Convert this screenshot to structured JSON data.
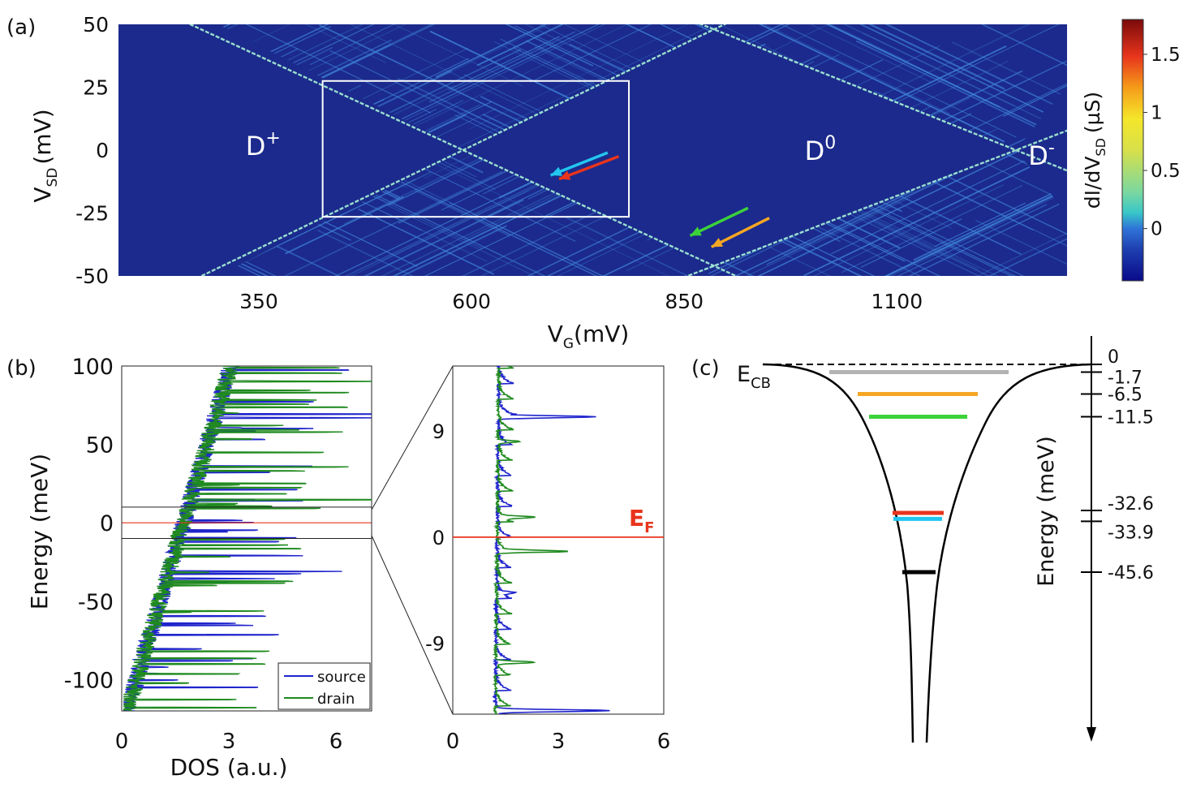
{
  "colors": {
    "map_bg": "#1b2a8c",
    "map_line": "#3f83d8",
    "ridge": "#a9f2d6",
    "box": "#ffffff",
    "source": "#1f24cc",
    "drain": "#1f8a1f",
    "fermi": "#e8341c",
    "cyan": "#22c6ef",
    "red": "#e8341c",
    "green": "#3cd23a",
    "orange": "#f5a623",
    "gray": "#b3b3b3",
    "black": "#000000"
  },
  "chart_data": [
    {
      "id": "a",
      "panel_label": "(a)",
      "type": "heatmap",
      "title": "",
      "xlabel": "V",
      "xlabel_sub": "G",
      "xlabel_unit": "(mV)",
      "ylabel": "V",
      "ylabel_sub": "SD",
      "ylabel_unit": "(mV)",
      "xlim": [
        185,
        1300
      ],
      "ylim": [
        -50,
        50
      ],
      "xticks": [
        350,
        600,
        850,
        1100
      ],
      "yticks": [
        -50,
        -25,
        0,
        25,
        50
      ],
      "colorbar": {
        "label": "dI/dV",
        "label_sub": "SD",
        "label_unit": "(µS)",
        "range": [
          -0.45,
          1.8
        ],
        "ticks": [
          "0",
          "0.5",
          "1",
          "1.5"
        ],
        "tick_values": [
          0,
          0.5,
          1,
          1.5
        ]
      },
      "regions": [
        {
          "label": "D",
          "sup": "+",
          "x": 355,
          "y": 2
        },
        {
          "label": "D",
          "sup": "0",
          "x": 1010,
          "y": 0
        },
        {
          "label": "D",
          "sup": "-",
          "x": 1270,
          "y": -2
        }
      ],
      "diamond_vertices": [
        [
          590,
          0
        ],
        [
          885,
          48
        ],
        [
          885,
          -46
        ],
        [
          1240,
          0
        ]
      ],
      "zoom_box": {
        "x": [
          425,
          785
        ],
        "y": [
          -26.5,
          27.5
        ]
      },
      "arrows": [
        {
          "color": "cyan",
          "from": [
            760,
            -1
          ],
          "to": [
            693,
            -10
          ]
        },
        {
          "color": "red",
          "from": [
            773,
            -2.5
          ],
          "to": [
            703,
            -11.5
          ]
        },
        {
          "color": "green",
          "from": [
            925,
            -23
          ],
          "to": [
            857,
            -34
          ]
        },
        {
          "color": "orange",
          "from": [
            950,
            -27
          ],
          "to": [
            882,
            -38.5
          ]
        }
      ]
    },
    {
      "id": "b",
      "panel_label": "(b)",
      "type": "line",
      "xlabel": "DOS (a.u.)",
      "ylabel": "Energy (meV)",
      "xlim": [
        0,
        7
      ],
      "ylim": [
        -120,
        100
      ],
      "xticks": [
        0,
        3,
        6
      ],
      "yticks": [
        -100,
        -50,
        0,
        50,
        100
      ],
      "fermi_level": 0,
      "zoom_band": [
        -8,
        8
      ],
      "legend": {
        "placement": "bottom-right",
        "entries": [
          "source",
          "drain"
        ]
      },
      "series": [
        {
          "name": "source",
          "color_key": "source"
        },
        {
          "name": "drain",
          "color_key": "drain"
        }
      ]
    },
    {
      "id": "b-inset",
      "panel_label": "",
      "type": "line",
      "xlim": [
        0,
        6
      ],
      "ylim": [
        -15,
        14.5
      ],
      "xticks": [
        0,
        3,
        6
      ],
      "yticks": [
        -9,
        0,
        9
      ],
      "fermi_label": "E",
      "fermi_sub": "F",
      "fermi_level": 0
    },
    {
      "id": "c",
      "panel_label": "(c)",
      "type": "diagram",
      "band_label": "E",
      "band_sub": "CB",
      "ylabel": "Energy (meV)",
      "levels": [
        {
          "value": 0,
          "label": "0",
          "color_key": "black",
          "dashed": true
        },
        {
          "value": -1.7,
          "label": "-1.7",
          "color_key": "gray"
        },
        {
          "value": -6.5,
          "label": "-6.5",
          "color_key": "orange"
        },
        {
          "value": -11.5,
          "label": "-11.5",
          "color_key": "green"
        },
        {
          "value": -32.6,
          "label": "-32.6",
          "color_key": "red"
        },
        {
          "value": -33.9,
          "label": "-33.9",
          "color_key": "cyan"
        },
        {
          "value": -45.6,
          "label": "-45.6",
          "color_key": "black"
        }
      ]
    }
  ]
}
